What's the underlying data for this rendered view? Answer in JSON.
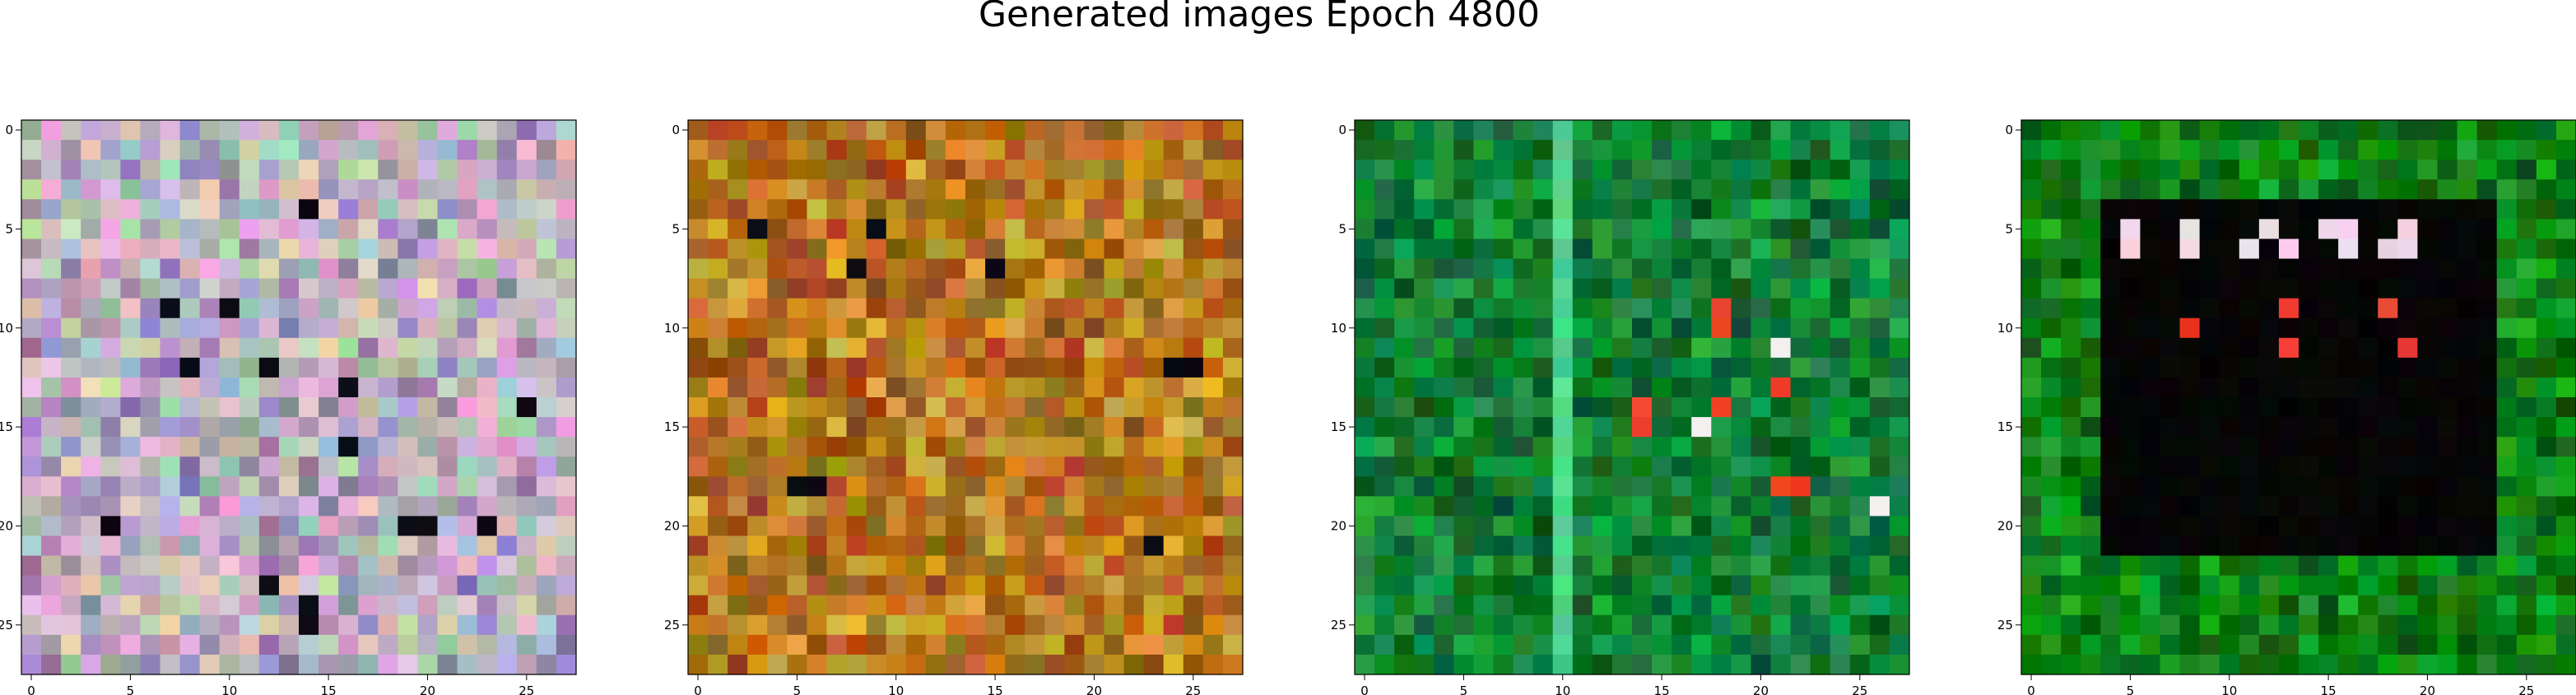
{
  "figure": {
    "title": "Generated images Epoch 4800"
  },
  "chart_data": [
    {
      "type": "heatmap",
      "title": "",
      "xlabel": "",
      "ylabel": "",
      "grid_size": [
        28,
        28
      ],
      "xlim": [
        -0.5,
        27.5
      ],
      "ylim": [
        27.5,
        -0.5
      ],
      "xticks": [
        0,
        5,
        10,
        15,
        20,
        25
      ],
      "xtick_labels": [
        "0",
        "5",
        "10",
        "15",
        "20",
        "25"
      ],
      "yticks": [
        0,
        5,
        10,
        15,
        20,
        25
      ],
      "ytick_labels": [
        "0",
        "5",
        "10",
        "15",
        "20",
        "25"
      ],
      "grid": false,
      "palette": [
        "#b9a6b8",
        "#d3b6c7",
        "#9fb3a6",
        "#c9a7d3",
        "#a7c3c9",
        "#dcc8b9",
        "#8e7fa6",
        "#e2b3d6",
        "#b4d1b0",
        "#a58fc0"
      ],
      "dark_pixels": [
        [
          4,
          14
        ],
        [
          9,
          7
        ],
        [
          9,
          10
        ],
        [
          12,
          8
        ],
        [
          12,
          12
        ],
        [
          14,
          25
        ],
        [
          16,
          16
        ],
        [
          20,
          4
        ],
        [
          20,
          19
        ],
        [
          20,
          20
        ],
        [
          20,
          23
        ],
        [
          23,
          12
        ],
        [
          24,
          14
        ],
        [
          25,
          14
        ],
        [
          13,
          16
        ]
      ],
      "noise_seed": 11
    },
    {
      "type": "heatmap",
      "title": "",
      "xlabel": "",
      "ylabel": "",
      "grid_size": [
        28,
        28
      ],
      "xlim": [
        -0.5,
        27.5
      ],
      "ylim": [
        27.5,
        -0.5
      ],
      "xticks": [
        0,
        5,
        10,
        15,
        20,
        25
      ],
      "xtick_labels": [
        "0",
        "5",
        "10",
        "15",
        "20",
        "25"
      ],
      "yticks": [
        0,
        5,
        10,
        15,
        20,
        25
      ],
      "ytick_labels": [
        "0",
        "5",
        "10",
        "15",
        "20",
        "25"
      ],
      "grid": false,
      "palette": [
        "#b8701a",
        "#c98a24",
        "#a8581a",
        "#d49a30",
        "#9c6a1c",
        "#c47a2a",
        "#b0881e",
        "#a84e18",
        "#d8a83a",
        "#8c5a16"
      ],
      "dark_pixels": [
        [
          5,
          3
        ],
        [
          5,
          9
        ],
        [
          7,
          15
        ],
        [
          12,
          24
        ],
        [
          12,
          25
        ],
        [
          18,
          5
        ],
        [
          18,
          6
        ],
        [
          21,
          23
        ],
        [
          7,
          8
        ]
      ],
      "noise_seed": 23
    },
    {
      "type": "heatmap",
      "title": "",
      "xlabel": "",
      "ylabel": "",
      "grid_size": [
        28,
        28
      ],
      "xlim": [
        -0.5,
        27.5
      ],
      "ylim": [
        27.5,
        -0.5
      ],
      "xticks": [
        0,
        5,
        10,
        15,
        20,
        25
      ],
      "xtick_labels": [
        "0",
        "5",
        "10",
        "15",
        "20",
        "25"
      ],
      "yticks": [
        0,
        5,
        10,
        15,
        20,
        25
      ],
      "ytick_labels": [
        "0",
        "5",
        "10",
        "15",
        "20",
        "25"
      ],
      "grid": false,
      "palette": [
        "#0f7a2e",
        "#138a3a",
        "#0b6a26",
        "#1a9442",
        "#0e7232",
        "#179046",
        "#0a5e22",
        "#128036",
        "#1ca04a",
        "#0d6e2c"
      ],
      "bright_column": 10,
      "red_pixels": [
        [
          9,
          18
        ],
        [
          10,
          18
        ],
        [
          13,
          21
        ],
        [
          14,
          14
        ],
        [
          14,
          18
        ],
        [
          15,
          14
        ],
        [
          18,
          21
        ],
        [
          18,
          22
        ]
      ],
      "white_pixels": [
        [
          11,
          21
        ],
        [
          15,
          17
        ],
        [
          19,
          26
        ]
      ],
      "noise_seed": 37
    },
    {
      "type": "heatmap",
      "title": "",
      "xlabel": "",
      "ylabel": "",
      "grid_size": [
        28,
        28
      ],
      "xlim": [
        -0.5,
        27.5
      ],
      "ylim": [
        27.5,
        -0.5
      ],
      "xticks": [
        0,
        5,
        10,
        15,
        20,
        25
      ],
      "xtick_labels": [
        "0",
        "5",
        "10",
        "15",
        "20",
        "25"
      ],
      "yticks": [
        0,
        5,
        10,
        15,
        20,
        25
      ],
      "ytick_labels": [
        "0",
        "5",
        "10",
        "15",
        "20",
        "25"
      ],
      "grid": false,
      "palette": [
        "#0a7a12",
        "#108a18",
        "#06680e",
        "#169a20",
        "#0c7214",
        "#129018",
        "#055c0a",
        "#0e8014",
        "#1aa226",
        "#087010"
      ],
      "dark_region": {
        "rows": [
          4,
          21
        ],
        "cols": [
          4,
          23
        ]
      },
      "light_pixels": [
        [
          5,
          5
        ],
        [
          5,
          8
        ],
        [
          5,
          12
        ],
        [
          5,
          15
        ],
        [
          5,
          16
        ],
        [
          5,
          19
        ],
        [
          6,
          5
        ],
        [
          6,
          8
        ],
        [
          6,
          11
        ],
        [
          6,
          13
        ],
        [
          6,
          16
        ],
        [
          6,
          18
        ],
        [
          6,
          19
        ]
      ],
      "red_pixels": [
        [
          9,
          13
        ],
        [
          9,
          18
        ],
        [
          10,
          8
        ],
        [
          11,
          13
        ],
        [
          11,
          19
        ]
      ],
      "noise_seed": 53
    }
  ]
}
